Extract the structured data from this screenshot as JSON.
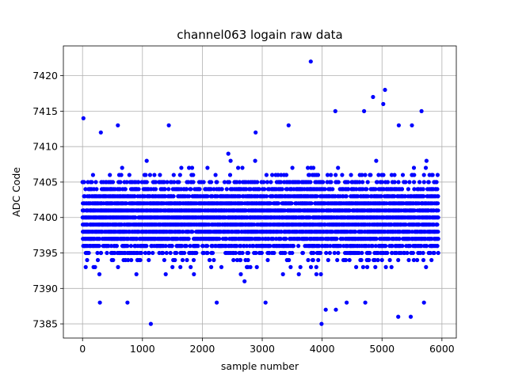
{
  "chart_data": {
    "type": "scatter",
    "title": "channel063 logain raw data",
    "xlabel": "sample number",
    "ylabel": "ADC Code",
    "xlim": [
      -320,
      6240
    ],
    "ylim": [
      7383,
      7424.2
    ],
    "xticks": [
      0,
      1000,
      2000,
      3000,
      4000,
      5000,
      6000
    ],
    "yticks": [
      7385,
      7390,
      7395,
      7400,
      7405,
      7410,
      7415,
      7420
    ],
    "xtick_labels": [
      "0",
      "1000",
      "2000",
      "3000",
      "4000",
      "5000",
      "6000"
    ],
    "ytick_labels": [
      "7385",
      "7390",
      "7395",
      "7400",
      "7405",
      "7410",
      "7415",
      "7420"
    ],
    "grid": true,
    "marker_color": "#0000ff",
    "series": [
      {
        "n_points": 6000,
        "x_range": [
          0,
          5940
        ],
        "y_center": 7400,
        "y_dense_range": [
          7392,
          7408
        ],
        "outliers": [
          {
            "x": 15,
            "y": 7414
          },
          {
            "x": 590,
            "y": 7413
          },
          {
            "x": 1440,
            "y": 7413
          },
          {
            "x": 1140,
            "y": 7385
          },
          {
            "x": 750,
            "y": 7388
          },
          {
            "x": 290,
            "y": 7388
          },
          {
            "x": 2240,
            "y": 7388
          },
          {
            "x": 3055,
            "y": 7388
          },
          {
            "x": 3810,
            "y": 7422
          },
          {
            "x": 3990,
            "y": 7385
          },
          {
            "x": 4060,
            "y": 7387
          },
          {
            "x": 4230,
            "y": 7387
          },
          {
            "x": 4410,
            "y": 7388
          },
          {
            "x": 4720,
            "y": 7388
          },
          {
            "x": 4220,
            "y": 7415
          },
          {
            "x": 4700,
            "y": 7415
          },
          {
            "x": 4850,
            "y": 7417
          },
          {
            "x": 5020,
            "y": 7416
          },
          {
            "x": 5050,
            "y": 7418
          },
          {
            "x": 5270,
            "y": 7386
          },
          {
            "x": 5480,
            "y": 7386
          },
          {
            "x": 5660,
            "y": 7415
          },
          {
            "x": 5700,
            "y": 7388
          },
          {
            "x": 3440,
            "y": 7413
          },
          {
            "x": 2890,
            "y": 7412
          },
          {
            "x": 305,
            "y": 7412
          },
          {
            "x": 5280,
            "y": 7413
          },
          {
            "x": 5500,
            "y": 7413
          }
        ]
      }
    ]
  }
}
